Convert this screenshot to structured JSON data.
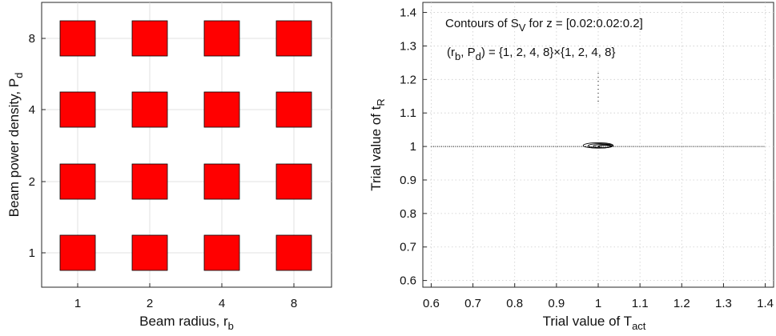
{
  "chart_data": [
    {
      "type": "scatter",
      "marker": "square",
      "marker_color": "#ff0000",
      "grid": true,
      "xlabel": "Beam radius, r",
      "xlabel_sub": "b",
      "ylabel": "Beam power density, P",
      "ylabel_sub": "d",
      "x_ticks": [
        "1",
        "2",
        "4",
        "8"
      ],
      "y_ticks": [
        "1",
        "2",
        "4",
        "8"
      ],
      "points": [
        {
          "x": 1,
          "y": 1
        },
        {
          "x": 2,
          "y": 1
        },
        {
          "x": 4,
          "y": 1
        },
        {
          "x": 8,
          "y": 1
        },
        {
          "x": 1,
          "y": 2
        },
        {
          "x": 2,
          "y": 2
        },
        {
          "x": 4,
          "y": 2
        },
        {
          "x": 8,
          "y": 2
        },
        {
          "x": 1,
          "y": 4
        },
        {
          "x": 2,
          "y": 4
        },
        {
          "x": 4,
          "y": 4
        },
        {
          "x": 8,
          "y": 4
        },
        {
          "x": 1,
          "y": 8
        },
        {
          "x": 2,
          "y": 8
        },
        {
          "x": 4,
          "y": 8
        },
        {
          "x": 8,
          "y": 8
        }
      ]
    },
    {
      "type": "contour",
      "grid": true,
      "xlabel": "Trial value of T",
      "xlabel_sub": "act",
      "ylabel": "Trial value of t",
      "ylabel_sub": "R",
      "xlim": [
        0.58,
        1.42
      ],
      "ylim": [
        0.58,
        1.43
      ],
      "x_ticks": [
        0.6,
        0.7,
        0.8,
        0.9,
        1,
        1.1,
        1.2,
        1.3,
        1.4
      ],
      "y_ticks": [
        0.6,
        0.7,
        0.8,
        0.9,
        1,
        1.1,
        1.2,
        1.3,
        1.4
      ],
      "x_tick_labels": [
        "0.6",
        "0.7",
        "0.8",
        "0.9",
        "1",
        "1.1",
        "1.2",
        "1.3",
        "1.4"
      ],
      "y_tick_labels": [
        "0.6",
        "0.7",
        "0.8",
        "0.9",
        "1",
        "1.1",
        "1.2",
        "1.3",
        "1.4"
      ],
      "annotation_line1": {
        "pre": "Contours of S",
        "sub": "V",
        "post": " for z = [0.02:0.02:0.2]"
      },
      "annotation_line2": {
        "pre": "(r",
        "sub1": "b",
        "mid": ", P",
        "sub2": "d",
        "post": ") = {1, 2, 4, 8}×{1, 2, 4, 8}"
      },
      "contours": [
        {
          "cx": 1.0,
          "cy": 1.003,
          "rx": 0.036,
          "ry": 0.008
        },
        {
          "cx": 1.005,
          "cy": 1.002,
          "rx": 0.029,
          "ry": 0.0065
        },
        {
          "cx": 1.01,
          "cy": 1.001,
          "rx": 0.022,
          "ry": 0.005
        },
        {
          "cx": 1.015,
          "cy": 1.0,
          "rx": 0.015,
          "ry": 0.0035
        }
      ],
      "dotted_line_y": 1.0,
      "dotted_vertical": {
        "x": 1.0,
        "y_from": 1.13,
        "y_to": 1.22
      }
    }
  ]
}
